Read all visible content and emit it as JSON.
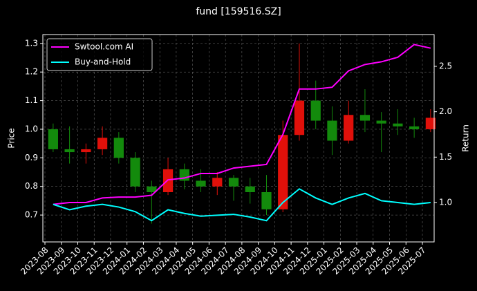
{
  "chart_data": {
    "type": "candlestick",
    "title": "fund [159516.SZ]",
    "ylabel": "Price",
    "y2label": "Return",
    "categories": [
      "2023-08",
      "2023-09",
      "2023-10",
      "2023-11",
      "2023-12",
      "2024-01",
      "2024-02",
      "2024-03",
      "2024-04",
      "2024-05",
      "2024-06",
      "2024-07",
      "2024-08",
      "2024-09",
      "2024-10",
      "2024-11",
      "2024-12",
      "2025-01",
      "2025-02",
      "2025-03",
      "2025-04",
      "2025-05",
      "2025-06",
      "2025-07"
    ],
    "open": [
      1.0,
      0.93,
      0.92,
      0.93,
      0.97,
      0.9,
      0.8,
      0.78,
      0.86,
      0.82,
      0.8,
      0.83,
      0.8,
      0.78,
      0.72,
      0.98,
      1.1,
      1.03,
      0.96,
      1.05,
      1.03,
      1.02,
      1.01,
      1.0
    ],
    "high": [
      1.02,
      1.01,
      0.95,
      1.01,
      0.99,
      0.92,
      0.82,
      0.9,
      0.88,
      0.86,
      0.85,
      0.84,
      0.83,
      0.84,
      1.03,
      1.3,
      1.17,
      1.08,
      1.1,
      1.14,
      1.06,
      1.07,
      1.04,
      1.07
    ],
    "low": [
      0.92,
      0.88,
      0.88,
      0.91,
      0.88,
      0.78,
      0.67,
      0.77,
      0.79,
      0.78,
      0.77,
      0.75,
      0.74,
      0.7,
      0.71,
      0.96,
      1.0,
      0.91,
      0.95,
      0.99,
      0.92,
      0.98,
      0.97,
      0.99
    ],
    "close": [
      0.93,
      0.92,
      0.93,
      0.97,
      0.9,
      0.8,
      0.78,
      0.86,
      0.82,
      0.8,
      0.83,
      0.8,
      0.78,
      0.72,
      0.98,
      1.1,
      1.03,
      0.96,
      1.05,
      1.03,
      1.02,
      1.01,
      1.0,
      1.04
    ],
    "up_color": "#e0100a",
    "down_color": "#138a0c",
    "series": [
      {
        "name": "Swtool.com AI",
        "color": "#ff00ff",
        "axis": "y2",
        "values": [
          0.98,
          1.0,
          1.0,
          1.05,
          1.06,
          1.06,
          1.08,
          1.25,
          1.27,
          1.32,
          1.32,
          1.38,
          1.4,
          1.42,
          1.75,
          2.25,
          2.25,
          2.27,
          2.45,
          2.52,
          2.55,
          2.6,
          2.74,
          2.7
        ]
      },
      {
        "name": "Buy-and-Hold",
        "color": "#00ffff",
        "axis": "y2",
        "values": [
          0.98,
          0.92,
          0.96,
          0.98,
          0.95,
          0.9,
          0.8,
          0.92,
          0.88,
          0.85,
          0.86,
          0.87,
          0.84,
          0.8,
          1.0,
          1.15,
          1.05,
          0.98,
          1.05,
          1.1,
          1.02,
          1.0,
          0.98,
          1.0
        ]
      }
    ],
    "ylim": [
      0.606,
      1.331
    ],
    "yticks": [
      0.7,
      0.8,
      0.9,
      {
        "value": 1,
        "label": "1.0"
      },
      1.1,
      1.2,
      1.3
    ],
    "y2lim": [
      0.566,
      2.85
    ],
    "y2ticks": [
      {
        "value": 1,
        "label": "1.0"
      },
      1.5,
      {
        "value": 2,
        "label": "2.0"
      },
      2.5
    ],
    "grid": true,
    "legend": "upper-left"
  }
}
